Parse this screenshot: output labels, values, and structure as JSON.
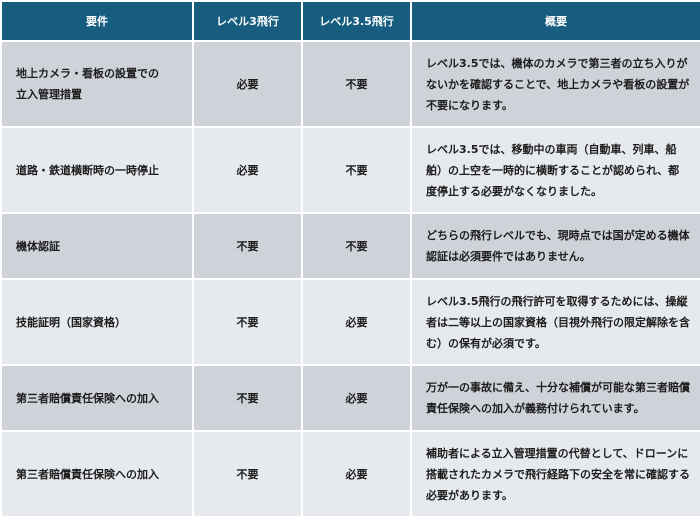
{
  "header": {
    "columns": [
      "要件",
      "レベル3飛行",
      "レベル3.5飛行",
      "概要"
    ]
  },
  "colors": {
    "header_bg": "#175d80",
    "row_dark": "#cfd3d9",
    "row_light": "#e6e9ed"
  },
  "rows": [
    {
      "requirement": "地上カメラ・看板の設置での\n立入管理措置",
      "level3": "必要",
      "level35": "不要",
      "summary": "レベル3.5では、機体のカメラで第三者の立ち入りがないかを確認することで、地上カメラや看板の設置が不要になります。"
    },
    {
      "requirement": "道路・鉄道横断時の一時停止",
      "level3": "必要",
      "level35": "不要",
      "summary": "レベル3.5では、移動中の車両（自動車、列車、船舶）の上空を一時的に横断することが認められ、都度停止する必要がなくなりました。"
    },
    {
      "requirement": "機体認証",
      "level3": "不要",
      "level35": "不要",
      "summary": "どちらの飛行レベルでも、現時点では国が定める機体認証は必須要件ではありません。"
    },
    {
      "requirement": "技能証明（国家資格）",
      "level3": "不要",
      "level35": "必要",
      "summary": "レベル3.5飛行の飛行許可を取得するためには、操縦者は二等以上の国家資格（目視外飛行の限定解除を含む）の保有が必須です。"
    },
    {
      "requirement": "第三者賠償責任保険への加入",
      "level3": "不要",
      "level35": "必要",
      "summary": "万が一の事故に備え、十分な補償が可能な第三者賠償責任保険への加入が義務付けられています。"
    },
    {
      "requirement": "第三者賠償責任保険への加入",
      "level3": "不要",
      "level35": "必要",
      "summary": "補助者による立入管理措置の代替として、ドローンに搭載されたカメラで飛行経路下の安全を常に確認する必要があります。"
    }
  ]
}
